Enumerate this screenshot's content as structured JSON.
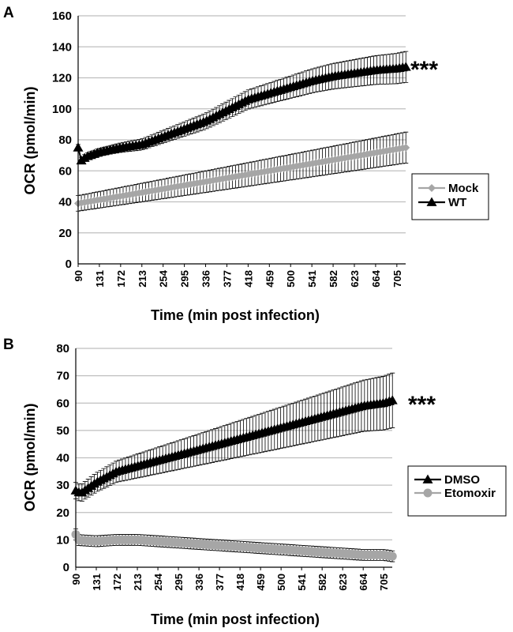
{
  "chart_data": [
    {
      "panel": "A",
      "type": "line",
      "ylabel": "OCR (pmol/min)",
      "xlabel": "Time (min post infection)",
      "ylim": [
        0,
        160
      ],
      "yticks": [
        0,
        20,
        40,
        60,
        80,
        100,
        120,
        140,
        160
      ],
      "xlim": [
        90,
        722
      ],
      "xticks": [
        90,
        131,
        172,
        213,
        254,
        295,
        336,
        377,
        418,
        459,
        500,
        541,
        582,
        623,
        664,
        705
      ],
      "grid": true,
      "legend": "right",
      "significance": "***",
      "series": [
        {
          "name": "Mock",
          "color": "#a6a6a6",
          "marker": "diamond",
          "x_start": 90,
          "x_step": 6.2,
          "n": 103,
          "y_start": 39,
          "y_end": 75,
          "y_curve": [
            2,
            0,
            0.95
          ],
          "err_start": 5,
          "err_end": 10
        },
        {
          "name": "WT",
          "color": "#000000",
          "marker": "triangle",
          "x_start": 90,
          "x_step": 6.2,
          "n": 103,
          "y_start": 65,
          "y_end": 127,
          "y_curve": [
            0,
            0,
            1.0
          ],
          "y_first": 75,
          "y_knots": [
            [
              90,
              65
            ],
            [
              105,
              69
            ],
            [
              131,
              72
            ],
            [
              172,
              75
            ],
            [
              213,
              77
            ],
            [
              254,
              82
            ],
            [
              295,
              87
            ],
            [
              336,
              92
            ],
            [
              377,
              99
            ],
            [
              418,
              106
            ],
            [
              459,
              110
            ],
            [
              500,
              114
            ],
            [
              541,
              118
            ],
            [
              582,
              121
            ],
            [
              623,
              123
            ],
            [
              664,
              125
            ],
            [
              705,
              126
            ],
            [
              722,
              127
            ]
          ],
          "err_start": 2,
          "err_end": 10
        }
      ]
    },
    {
      "panel": "B",
      "type": "line",
      "ylabel": "OCR (pmol/min)",
      "xlabel": "Time (min post infection)",
      "ylim": [
        0,
        80
      ],
      "yticks": [
        0,
        10,
        20,
        30,
        40,
        50,
        60,
        70,
        80
      ],
      "xlim": [
        90,
        722
      ],
      "xticks": [
        90,
        131,
        172,
        213,
        254,
        295,
        336,
        377,
        418,
        459,
        500,
        541,
        582,
        623,
        664,
        705
      ],
      "grid": true,
      "legend": "right",
      "significance": "***",
      "series": [
        {
          "name": "DMSO",
          "color": "#000000",
          "marker": "triangle",
          "x_start": 90,
          "x_step": 6.2,
          "n": 103,
          "y_knots": [
            [
              90,
              28
            ],
            [
              100,
              27
            ],
            [
              131,
              31
            ],
            [
              172,
              35
            ],
            [
              213,
              37
            ],
            [
              254,
              39
            ],
            [
              295,
              41
            ],
            [
              336,
              43
            ],
            [
              377,
              45
            ],
            [
              418,
              47
            ],
            [
              459,
              49
            ],
            [
              500,
              51
            ],
            [
              541,
              53
            ],
            [
              582,
              55
            ],
            [
              623,
              57
            ],
            [
              664,
              59
            ],
            [
              705,
              60
            ],
            [
              722,
              61
            ]
          ],
          "err_start": 3,
          "err_end": 10
        },
        {
          "name": "Etomoxir",
          "color": "#a6a6a6",
          "marker": "circle",
          "x_start": 90,
          "x_step": 6.2,
          "n": 103,
          "y_first": 12,
          "y_knots": [
            [
              90,
              10
            ],
            [
              131,
              9.5
            ],
            [
              172,
              10
            ],
            [
              213,
              10
            ],
            [
              254,
              9.5
            ],
            [
              295,
              9
            ],
            [
              336,
              8.5
            ],
            [
              377,
              8
            ],
            [
              418,
              7.5
            ],
            [
              459,
              7
            ],
            [
              500,
              6.5
            ],
            [
              541,
              6
            ],
            [
              582,
              5.5
            ],
            [
              623,
              5
            ],
            [
              664,
              4.5
            ],
            [
              705,
              4.5
            ],
            [
              722,
              4
            ]
          ],
          "err_start": 2,
          "err_end": 2
        }
      ]
    }
  ]
}
